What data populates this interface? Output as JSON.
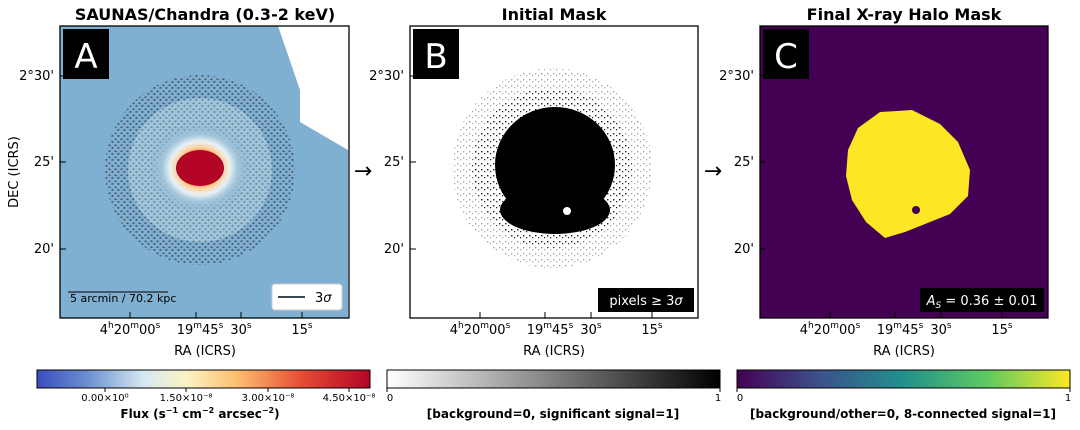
{
  "panels": [
    {
      "letter": "A",
      "title": "SAUNAS/Chandra (0.3-2 keV)",
      "xlabel": "RA (ICRS)",
      "ylabel": "DEC (ICRS)",
      "xticks": [
        {
          "h": "4",
          "hu": "h",
          "m": "20",
          "mu": "m",
          "s": "00",
          "su": "s"
        },
        {
          "m": "19",
          "mu": "m",
          "s": "45",
          "su": "s"
        },
        {
          "s": "30",
          "su": "s"
        },
        {
          "s": "15",
          "su": "s"
        }
      ],
      "yticks": [
        "2°30'",
        "25'",
        "20'"
      ],
      "scalebar_label": "5 arcmin / 70.2 kpc",
      "legend_label": "3",
      "legend_sigma": "σ",
      "colorbar": {
        "ticks": [
          "0.00×10⁰",
          "1.50×10⁻⁸",
          "3.00×10⁻⁸",
          "4.50×10⁻⁸"
        ],
        "label_main": "Flux (s",
        "label_sup1": "−1",
        "label_mid": " cm",
        "label_sup2": "−2",
        "label_mid2": " arcsec",
        "label_sup3": "−2",
        "label_end": ")"
      }
    },
    {
      "letter": "B",
      "title": "Initial Mask",
      "xlabel": "RA (ICRS)",
      "xticks": [
        {
          "h": "4",
          "hu": "h",
          "m": "20",
          "mu": "m",
          "s": "00",
          "su": "s"
        },
        {
          "m": "19",
          "mu": "m",
          "s": "45",
          "su": "s"
        },
        {
          "s": "30",
          "su": "s"
        },
        {
          "s": "15",
          "su": "s"
        }
      ],
      "yticks": [
        "2°30'",
        "25'",
        "20'"
      ],
      "inset_label": "pixels ≥ 3",
      "inset_sigma": "σ",
      "colorbar": {
        "ticks": [
          "0",
          "1"
        ],
        "label": "[background=0, significant signal=1]"
      }
    },
    {
      "letter": "C",
      "title": "Final X-ray Halo Mask",
      "xlabel": "RA (ICRS)",
      "xticks": [
        {
          "h": "4",
          "hu": "h",
          "m": "20",
          "mu": "m",
          "s": "00",
          "su": "s"
        },
        {
          "m": "19",
          "mu": "m",
          "s": "45",
          "su": "s"
        },
        {
          "s": "30",
          "su": "s"
        },
        {
          "s": "15",
          "su": "s"
        }
      ],
      "yticks": [
        "2°30'",
        "25'",
        "20'"
      ],
      "inset_A": "A",
      "inset_sub": "S",
      "inset_value": " = 0.36 ± 0.01",
      "colorbar": {
        "ticks": [
          "0",
          "1"
        ],
        "label": "[background/other=0, 8-connected signal=1]"
      }
    }
  ],
  "arrows": [
    "→",
    "→"
  ],
  "colors": {
    "mask_background": "#440154",
    "mask_signal": "#fde725",
    "flux_low": "#3b5fa8",
    "flux_high": "#b40426"
  },
  "chart_data": [
    {
      "type": "heatmap",
      "title": "SAUNAS/Chandra (0.3-2 keV)",
      "xlabel": "RA (ICRS)",
      "ylabel": "DEC (ICRS)",
      "colorbar_range": [
        0.0,
        5e-08
      ],
      "colorbar_ticks": [
        0.0,
        1.5e-08,
        3e-08,
        4.5e-08
      ],
      "colorbar_label": "Flux (s^-1 cm^-2 arcsec^-2)",
      "colormap": "RdYlBu_r"
    },
    {
      "type": "heatmap",
      "title": "Initial Mask",
      "xlabel": "RA (ICRS)",
      "colorbar_range": [
        0,
        1
      ],
      "colorbar_label": "[background=0, significant signal=1]",
      "colormap": "gray_r"
    },
    {
      "type": "heatmap",
      "title": "Final X-ray Halo Mask",
      "xlabel": "RA (ICRS)",
      "colorbar_range": [
        0,
        1
      ],
      "colorbar_label": "[background/other=0, 8-connected signal=1]",
      "colormap": "viridis",
      "A_S": 0.36,
      "A_S_err": 0.01
    }
  ]
}
